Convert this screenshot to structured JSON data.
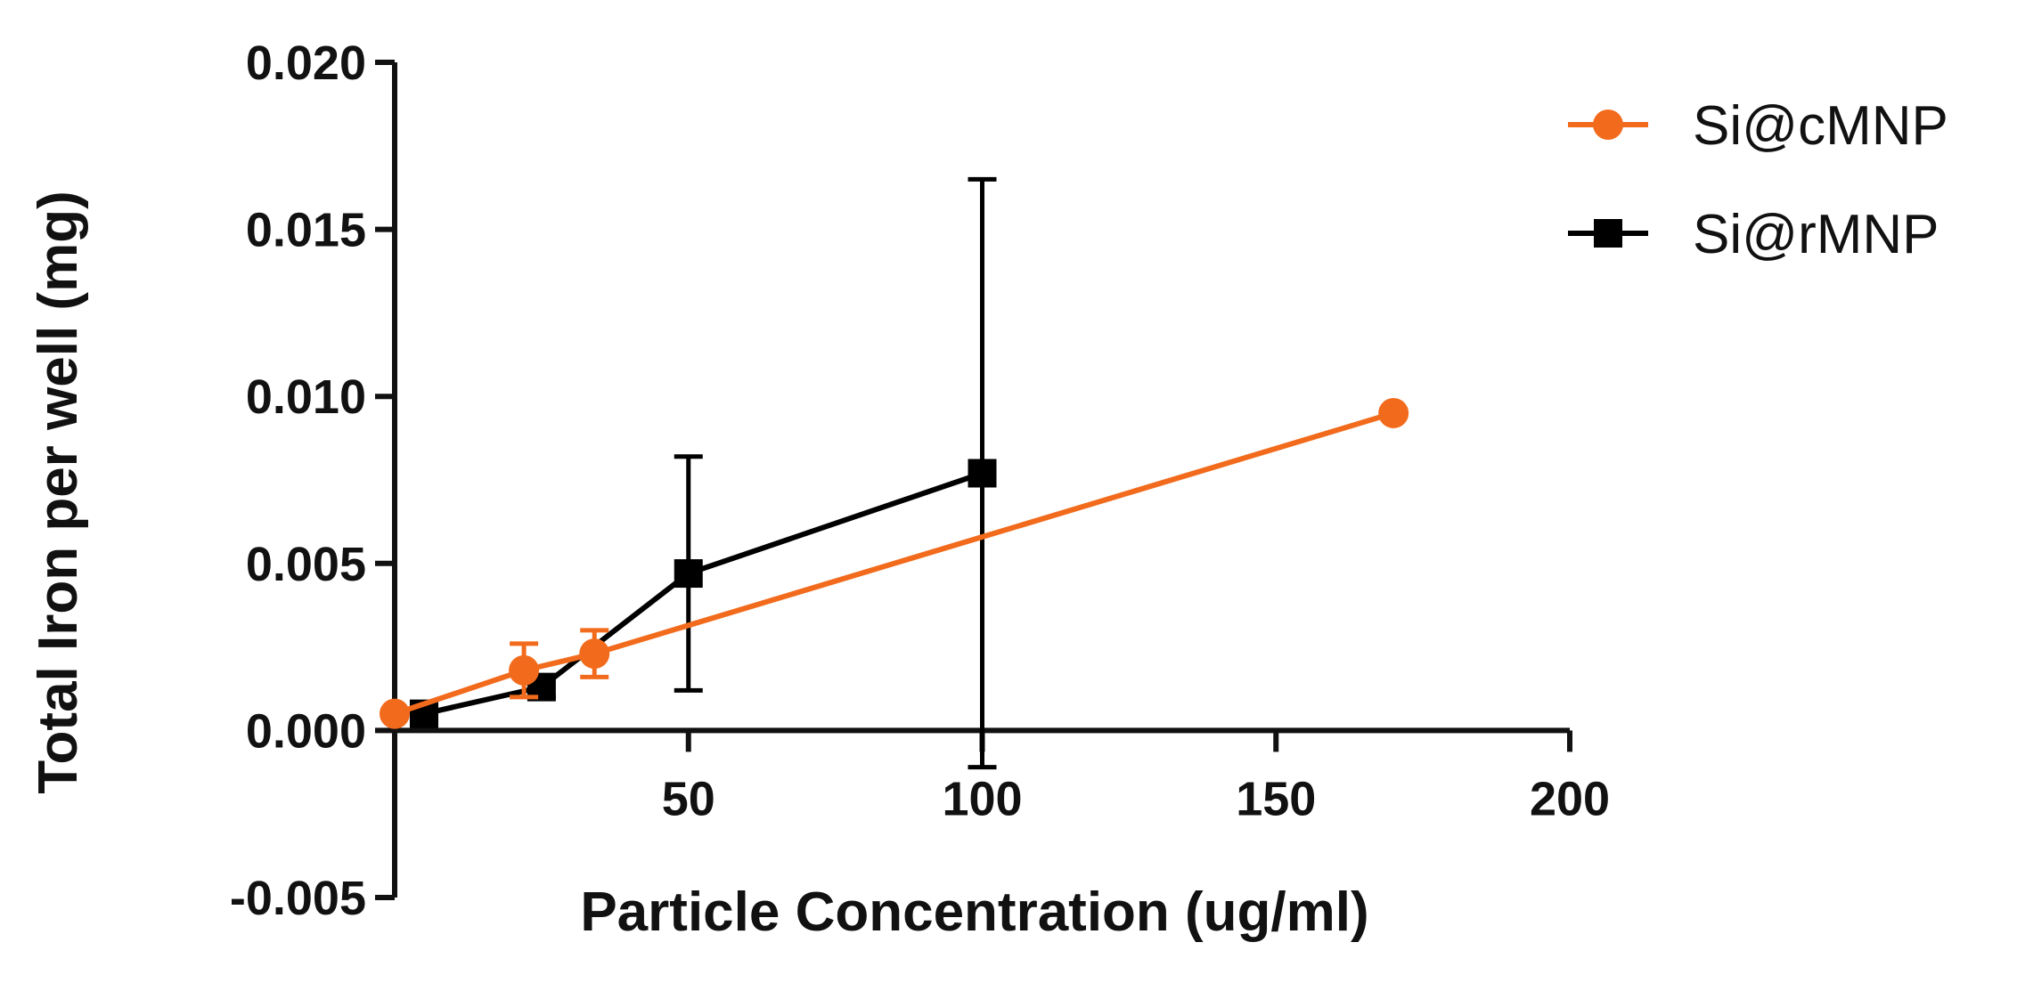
{
  "chart_data": {
    "type": "line",
    "title": "",
    "xlabel": "Particle Concentration (ug/ml)",
    "ylabel": "Total Iron per well (mg)",
    "xlim": [
      0,
      200
    ],
    "ylim": [
      -0.005,
      0.02
    ],
    "x_ticks": [
      50,
      100,
      150,
      200
    ],
    "x_tick_labels": [
      "50",
      "100",
      "150",
      "200"
    ],
    "y_ticks": [
      -0.005,
      0.0,
      0.005,
      0.01,
      0.015,
      0.02
    ],
    "y_tick_labels": [
      "-0.005",
      "0.000",
      "0.005",
      "0.010",
      "0.015",
      "0.020"
    ],
    "grid": false,
    "legend_position": "top-right",
    "series": [
      {
        "name": "Si@cMNP",
        "color": "#f26b1d",
        "marker": "circle",
        "x": [
          0,
          22,
          34,
          170
        ],
        "y": [
          0.0005,
          0.0018,
          0.0023,
          0.0095
        ],
        "error": [
          0.0001,
          0.0008,
          0.0007,
          0.0001
        ]
      },
      {
        "name": "Si@rMNP",
        "color": "#000000",
        "marker": "square",
        "x": [
          5,
          25,
          50,
          100
        ],
        "y": [
          0.0005,
          0.0013,
          0.0047,
          0.0077
        ],
        "error": [
          0.0002,
          0.0003,
          0.0035,
          0.0088
        ]
      }
    ]
  }
}
